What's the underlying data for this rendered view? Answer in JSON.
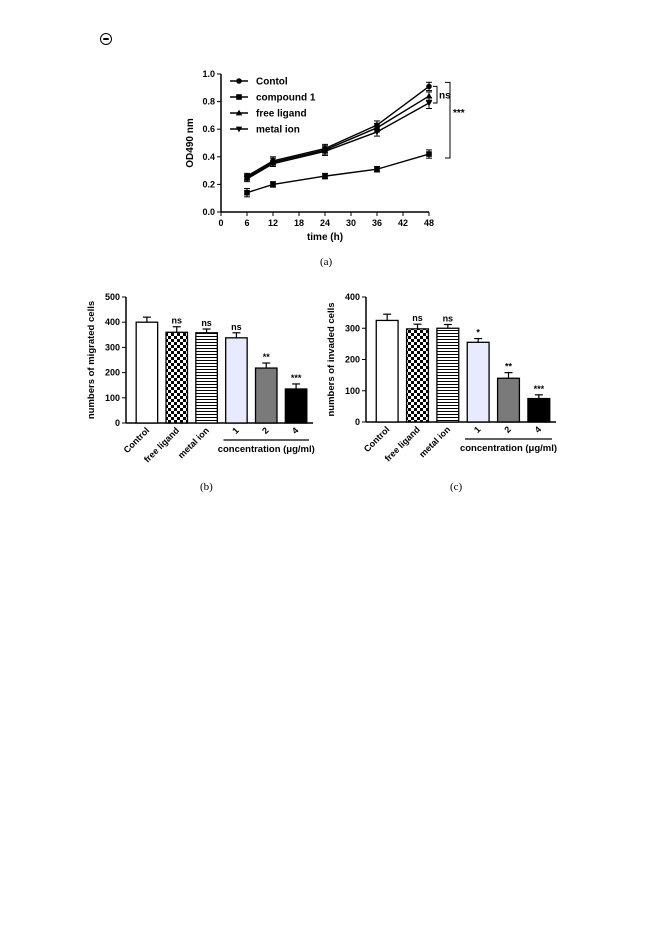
{
  "header": {
    "icon": "open-access-icon"
  },
  "captions": {
    "a": "(a)",
    "b": "(b)",
    "c": "(c)"
  },
  "colors": {
    "axis": "#000000",
    "compound1_bar": "#e8eaff",
    "compound2_bar": "#7a7a7a",
    "compound4_bar": "#000000"
  },
  "chart_data": [
    {
      "id": "a",
      "type": "line",
      "xlabel": "time (h)",
      "ylabel": "OD490 nm",
      "x": [
        6,
        12,
        24,
        36,
        48
      ],
      "xticks": [
        0,
        6,
        12,
        18,
        24,
        30,
        36,
        42,
        48
      ],
      "xlim": [
        0,
        48
      ],
      "ylim": [
        0,
        1.0
      ],
      "yticks": [
        0.0,
        0.2,
        0.4,
        0.6,
        0.8,
        1.0
      ],
      "legend_position": "top-left",
      "series": [
        {
          "name": "Contol",
          "marker": "circle",
          "values": [
            0.26,
            0.37,
            0.46,
            0.63,
            0.91
          ],
          "errors": [
            0.02,
            0.03,
            0.03,
            0.03,
            0.03
          ]
        },
        {
          "name": "compound 1",
          "marker": "square",
          "values": [
            0.14,
            0.2,
            0.26,
            0.31,
            0.42
          ],
          "errors": [
            0.03,
            0.02,
            0.02,
            0.02,
            0.03
          ]
        },
        {
          "name": "free ligand",
          "marker": "triangle-up",
          "values": [
            0.25,
            0.36,
            0.45,
            0.61,
            0.84
          ],
          "errors": [
            0.02,
            0.03,
            0.03,
            0.03,
            0.03
          ]
        },
        {
          "name": "metal ion",
          "marker": "triangle-down",
          "values": [
            0.24,
            0.35,
            0.44,
            0.58,
            0.79
          ],
          "errors": [
            0.02,
            0.02,
            0.03,
            0.03,
            0.04
          ]
        }
      ],
      "annotations": [
        {
          "text": "ns",
          "between": [
            "Contol",
            "metal ion"
          ]
        },
        {
          "text": "***",
          "between": [
            "Contol",
            "compound 1"
          ]
        }
      ]
    },
    {
      "id": "b",
      "type": "bar",
      "ylabel": "numbers of migrated cells",
      "ylim": [
        0,
        500
      ],
      "yticks": [
        0,
        100,
        200,
        300,
        400,
        500
      ],
      "categories": [
        "Control",
        "free ligand",
        "metal ion",
        "1",
        "2",
        "4"
      ],
      "group_label": "concentration (μg/ml)",
      "values": [
        400,
        360,
        358,
        338,
        218,
        135
      ],
      "errors": [
        20,
        22,
        15,
        20,
        20,
        20
      ],
      "annotations": [
        "",
        "ns",
        "ns",
        "ns",
        "**",
        "***"
      ],
      "fills": [
        "white",
        "checker",
        "hstripes",
        "compound1_bar",
        "compound2_bar",
        "compound4_bar"
      ]
    },
    {
      "id": "c",
      "type": "bar",
      "ylabel": "numbers of invaded cells",
      "ylim": [
        0,
        400
      ],
      "yticks": [
        0,
        100,
        200,
        300,
        400
      ],
      "categories": [
        "Control",
        "free ligand",
        "metal ion",
        "1",
        "2",
        "4"
      ],
      "group_label": "concentration (μg/ml)",
      "values": [
        325,
        298,
        300,
        255,
        140,
        75
      ],
      "errors": [
        20,
        15,
        12,
        12,
        18,
        12
      ],
      "annotations": [
        "",
        "ns",
        "ns",
        "*",
        "**",
        "***"
      ],
      "fills": [
        "white",
        "checker",
        "hstripes",
        "compound1_bar",
        "compound2_bar",
        "compound4_bar"
      ]
    }
  ]
}
